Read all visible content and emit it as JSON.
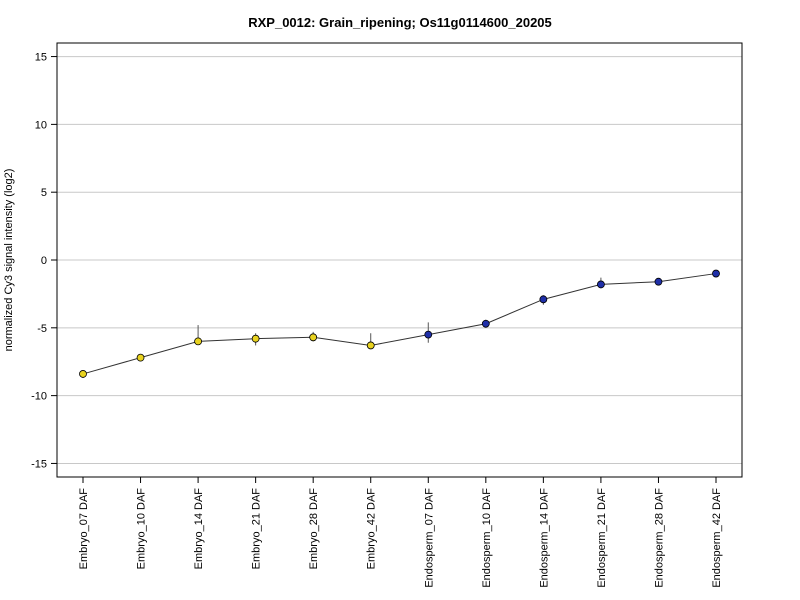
{
  "chart_data": {
    "type": "line",
    "title": "RXP_0012: Grain_ripening; Os11g0114600_20205",
    "xlabel": "",
    "ylabel": "normalized Cy3 signal intensity (log2)",
    "ylim": [
      -16,
      16
    ],
    "yticks": [
      -15,
      -10,
      -5,
      0,
      5,
      10,
      15
    ],
    "grid": "horizontal",
    "categories": [
      "Embryo_07 DAF",
      "Embryo_10 DAF",
      "Embryo_14 DAF",
      "Embryo_21 DAF",
      "Embryo_28 DAF",
      "Embryo_42 DAF",
      "Endosperm_07 DAF",
      "Endosperm_10 DAF",
      "Endosperm_14 DAF",
      "Endosperm_21 DAF",
      "Endosperm_28 DAF",
      "Endosperm_42 DAF"
    ],
    "series": [
      {
        "values": [
          -8.4,
          -7.2,
          -6.0,
          -5.8,
          -5.7,
          -6.3,
          -5.5,
          -4.7,
          -2.9,
          -1.8,
          -1.6,
          -1.0
        ],
        "error_low": [
          -8.7,
          -7.4,
          -6.2,
          -6.3,
          -6.0,
          -6.5,
          -6.1,
          -5.0,
          -3.3,
          -2.0,
          -1.7,
          -1.1
        ],
        "error_high": [
          -8.2,
          -7.0,
          -4.8,
          -5.4,
          -5.3,
          -5.4,
          -4.6,
          -4.4,
          -2.6,
          -1.3,
          -1.4,
          -0.8
        ],
        "point_colors": [
          "#e8d21f",
          "#e8d21f",
          "#e8d21f",
          "#e8d21f",
          "#e8d21f",
          "#e8d21f",
          "#1f2fa8",
          "#1f2fa8",
          "#1f2fa8",
          "#1f2fa8",
          "#1f2fa8",
          "#1f2fa8"
        ]
      }
    ]
  },
  "colors": {
    "line": "#333333",
    "grid": "#c8c8c8",
    "frame": "#000000"
  }
}
